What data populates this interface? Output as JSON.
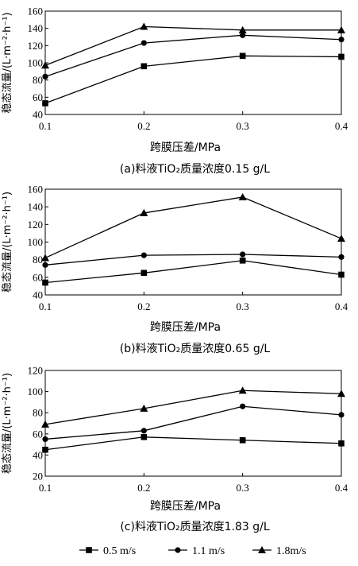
{
  "chart_data": [
    {
      "type": "line",
      "panel": "a",
      "caption": "(a)料液TiO₂质量浓度0.15 g/L",
      "xlabel": "跨膜压差/MPa",
      "ylabel": "稳态流量/(L·m⁻²·h⁻¹)",
      "x": [
        0.1,
        0.2,
        0.3,
        0.4
      ],
      "xticks": [
        "0.1",
        "0.2",
        "0.3",
        "0.4"
      ],
      "xlim": [
        0.1,
        0.4
      ],
      "ylim": [
        40,
        160
      ],
      "yticks": [
        40,
        60,
        80,
        100,
        120,
        140,
        160
      ],
      "series": [
        {
          "name": "0.5 m/s",
          "marker": "square",
          "values": [
            53,
            96,
            108,
            107
          ]
        },
        {
          "name": "1.1 m/s",
          "marker": "circle",
          "values": [
            84,
            123,
            132,
            127
          ]
        },
        {
          "name": "1.8m/s",
          "marker": "triangle",
          "values": [
            97,
            142,
            138,
            138
          ]
        }
      ]
    },
    {
      "type": "line",
      "panel": "b",
      "caption": "(b)料液TiO₂质量浓度0.65 g/L",
      "xlabel": "跨膜压差/MPa",
      "ylabel": "稳态流量/(L·m⁻²·h⁻¹)",
      "x": [
        0.1,
        0.2,
        0.3,
        0.4
      ],
      "xticks": [
        "0.1",
        "0.2",
        "0.3",
        "0.4"
      ],
      "xlim": [
        0.1,
        0.4
      ],
      "ylim": [
        40,
        160
      ],
      "yticks": [
        40,
        60,
        80,
        100,
        120,
        140,
        160
      ],
      "series": [
        {
          "name": "0.5 m/s",
          "marker": "square",
          "values": [
            54,
            65,
            79,
            63
          ]
        },
        {
          "name": "1.1 m/s",
          "marker": "circle",
          "values": [
            74,
            85,
            86,
            83
          ]
        },
        {
          "name": "1.8m/s",
          "marker": "triangle",
          "values": [
            82,
            133,
            151,
            104
          ]
        }
      ]
    },
    {
      "type": "line",
      "panel": "c",
      "caption": "(c)料液TiO₂质量浓度1.83 g/L",
      "xlabel": "跨膜压差/MPa",
      "ylabel": "稳态流量/(L·m⁻²·h⁻¹)",
      "x": [
        0.1,
        0.2,
        0.3,
        0.4
      ],
      "xticks": [
        "0.1",
        "0.2",
        "0.3",
        "0.4"
      ],
      "xlim": [
        0.1,
        0.4
      ],
      "ylim": [
        20,
        120
      ],
      "yticks": [
        20,
        40,
        60,
        80,
        100,
        120
      ],
      "series": [
        {
          "name": "0.5 m/s",
          "marker": "square",
          "values": [
            45,
            57,
            54,
            51
          ]
        },
        {
          "name": "1.1 m/s",
          "marker": "circle",
          "values": [
            55,
            63,
            86,
            78
          ]
        },
        {
          "name": "1.8m/s",
          "marker": "triangle",
          "values": [
            69,
            84,
            101,
            98
          ]
        }
      ]
    }
  ],
  "legend": {
    "placement": "bottom-center",
    "items": [
      {
        "marker": "square",
        "label": "0.5 m/s"
      },
      {
        "marker": "circle",
        "label": "1.1 m/s"
      },
      {
        "marker": "triangle",
        "label": "1.8m/s"
      }
    ]
  },
  "style": {
    "line_color": "#000000",
    "background": "#ffffff"
  }
}
